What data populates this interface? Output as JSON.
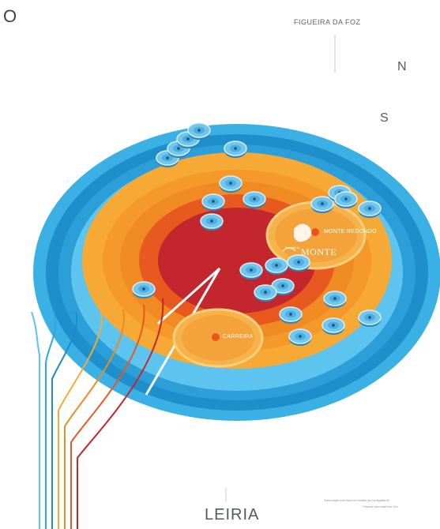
{
  "compass": {
    "ring": "O",
    "north": "N",
    "south": "S"
  },
  "cities": {
    "top": "FIGUEIRA DA FOZ",
    "bottom": "LEIRIA"
  },
  "places": {
    "monte_redondo": "MONTE REDONDO",
    "carreira": "CARREIRA"
  },
  "brand": {
    "name": "MONTE",
    "prefix": "Herdade do"
  },
  "footnotes": [
    "*Informação com base em extrato da Cartografia Mi",
    "**Valores com base nos Cen"
  ],
  "colors": {
    "ring_outer": "#29a9e1",
    "ring_blue_dark": "#1d8cc8",
    "ring_blue_light": "#5cc4ee",
    "ring_orange_light": "#f7a935",
    "ring_orange": "#f08a23",
    "ring_orange_red": "#e8591f",
    "ring_red": "#c4262e",
    "marker": "#74c6ec"
  }
}
